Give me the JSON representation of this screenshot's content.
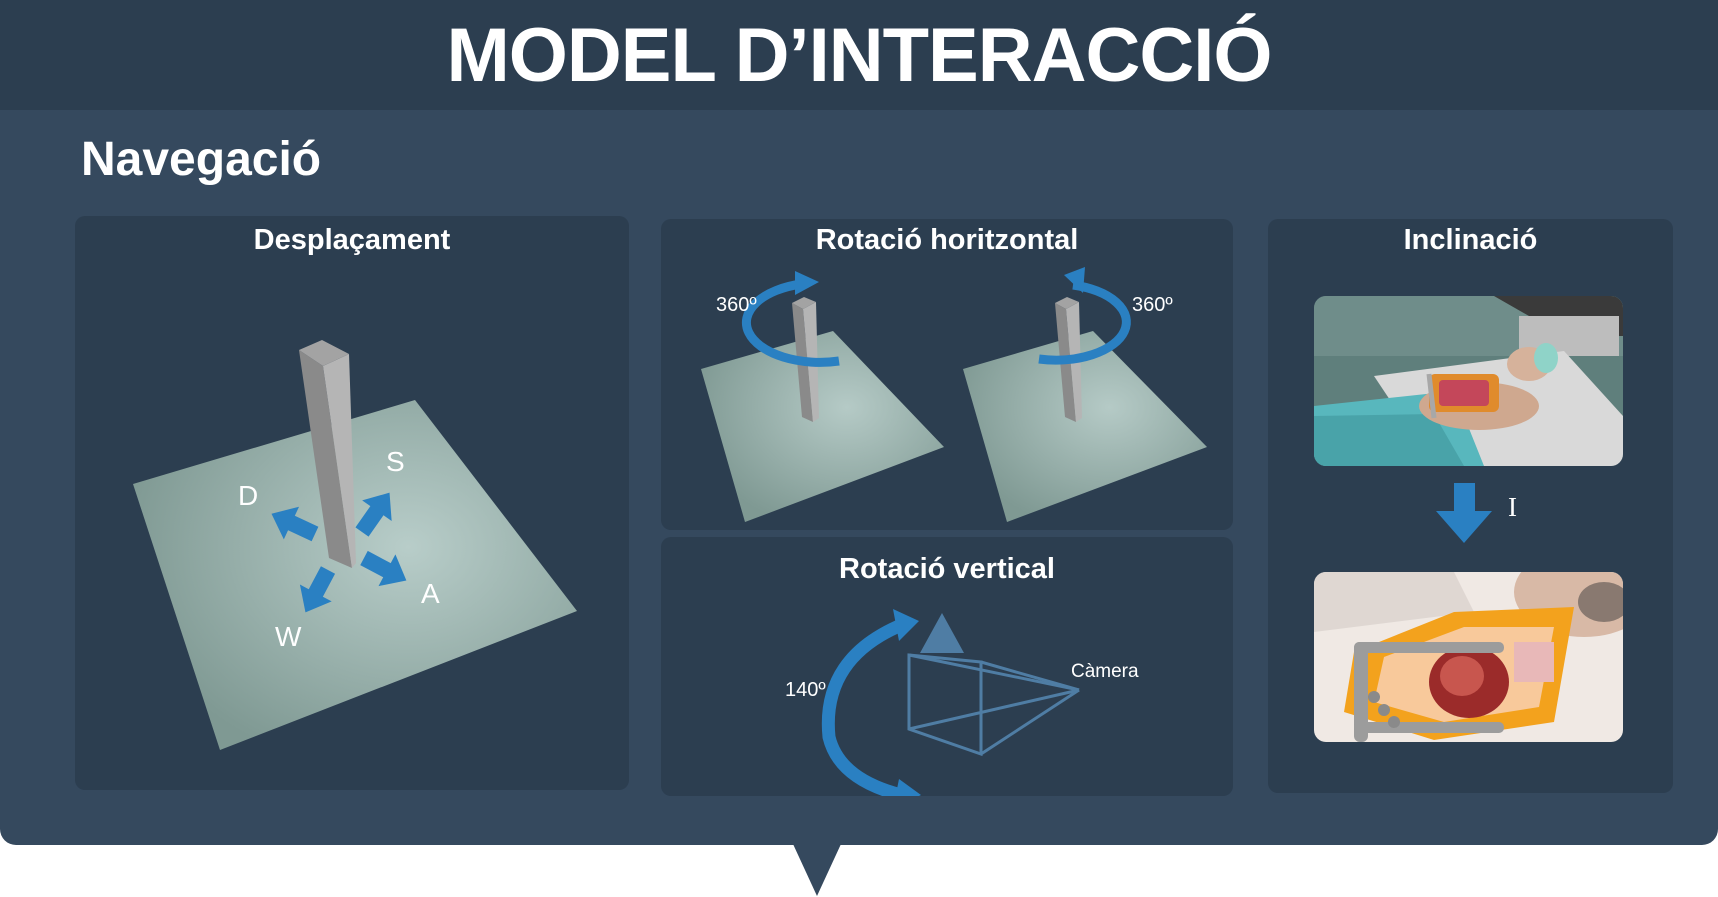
{
  "header": {
    "title": "MODEL D’INTERACCIÓ"
  },
  "section": {
    "title": "Navegació"
  },
  "panels": {
    "desplacament": {
      "title": "Desplaçament",
      "keys": {
        "forward": "S",
        "left": "D",
        "right": "A",
        "back": "W"
      }
    },
    "rotacio_horitzontal": {
      "title": "Rotació horitzontal",
      "left_angle": "360º",
      "right_angle": "360º"
    },
    "rotacio_vertical": {
      "title": "Rotació vertical",
      "angle": "140º",
      "camera_label": "Càmera"
    },
    "inclinacio": {
      "title": "Inclinació",
      "key": "I"
    }
  },
  "colors": {
    "header_bg": "#2c3e50",
    "board_bg": "#35495e",
    "panel_bg": "#2c3e50",
    "arrow_blue": "#2a80c2",
    "plane_green": "#8fa9a4"
  }
}
